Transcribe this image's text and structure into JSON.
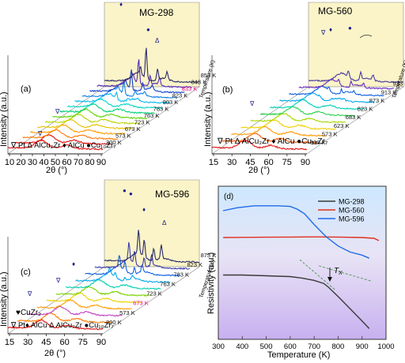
{
  "colors": {
    "temps_a": [
      "#e01010",
      "#e01010",
      "#ff7a00",
      "#ff9c00",
      "#e6c200",
      "#b7d400",
      "#5ad400",
      "#00d27a",
      "#00d6c4",
      "#00b8f0",
      "#1080e8",
      "#1040c8",
      "#5a2cb8",
      "#2a2a6a"
    ],
    "temps_b": [
      "#e01010",
      "#ff5a00",
      "#ff9a00",
      "#f0d000",
      "#a8d800",
      "#28d04a",
      "#00d0b8",
      "#00a8f0",
      "#1060e0",
      "#6a2cc0",
      "#4a3aa0"
    ],
    "temps_c": [
      "#e01010",
      "#ff7a00",
      "#c040c0",
      "#ff9a00",
      "#f0d000",
      "#7ad400",
      "#00d0b0",
      "#00a8f0",
      "#1060e0",
      "#3a3aa8",
      "#2a2a6a"
    ],
    "highlight_label": "#e0107a",
    "wall": "#fbf4c8",
    "floor_fill": "#ffffff"
  },
  "chart_data": [
    {
      "type": "line",
      "panel_label": "(a)",
      "title": "MG-298",
      "xlabel": "2θ (°)",
      "ylabel": "Intensity (a.u.)",
      "depth_label": "Temperature (K)",
      "x_ticks": [
        "10",
        "20",
        "30",
        "40",
        "50",
        "60",
        "70",
        "80",
        "90"
      ],
      "xlim": [
        10,
        90
      ],
      "temperature_labels": [
        "300 K",
        "573 K",
        "673 K",
        "723 K",
        "763 K",
        "783 K",
        "803 K",
        "823 K",
        "833 K",
        "843 K",
        "853 K"
      ],
      "highlighted_label": "833 K",
      "legend": "∇ Pt Δ AlCu₂Zr ♦ AlCu ●Cu₁₀Zr₇",
      "markers": [
        "∇",
        "∇",
        "♦",
        "●",
        "Δ"
      ]
    },
    {
      "type": "line",
      "panel_label": "(b)",
      "title": "MG-560",
      "xlabel": "2θ (°)",
      "ylabel": "Intensity (a.u.)",
      "depth_label": "Temperature (K)",
      "x_ticks": [
        "15",
        "30",
        "45",
        "60",
        "75",
        "90"
      ],
      "xlim": [
        15,
        90
      ],
      "temperature_labels": [
        "300 K",
        "573 K",
        "623 K",
        "683 K",
        "823 K",
        "873 K",
        "913 K",
        "933 K",
        "973 K"
      ],
      "highlighted_label": "973 K",
      "legend": "∇ Pt Δ AlCu₂Zr ♦ AlCu ●Cu₁₀Zr₇",
      "markers": [
        "∇",
        "∇",
        "♦",
        "●"
      ]
    },
    {
      "type": "line",
      "panel_label": "(c)",
      "title": "MG-596",
      "xlabel": "2θ (°)",
      "ylabel": "Intensity (a.u.)",
      "depth_label": "Temperature (K)",
      "x_ticks": [
        "15",
        "30",
        "45",
        "60",
        "75",
        "90"
      ],
      "xlim": [
        15,
        90
      ],
      "temperature_labels": [
        "300 K",
        "573 K",
        "673 K",
        "723 K",
        "763 K",
        "783 K",
        "823 K",
        "873 K"
      ],
      "highlighted_label": "673 K",
      "legend_line1": "♥CuZr₂",
      "legend": "∇ Pt♦ AlCu Δ AlCu₂Zr ●Cu₁₀Zr₇",
      "markers": [
        "∇",
        "∇",
        "♦",
        "●",
        "●",
        "♦",
        "Δ"
      ]
    },
    {
      "type": "line",
      "panel_label": "(d)",
      "xlabel": "Temperature (K)",
      "ylabel": "Resistivity (a.u.)",
      "xlim": [
        300,
        1000
      ],
      "x_ticks": [
        "300",
        "400",
        "500",
        "600",
        "700",
        "800",
        "900",
        "1000"
      ],
      "annotation": "T",
      "annotation_sub": "X",
      "series": [
        {
          "name": "MG-298",
          "color": "#3a3a3a",
          "x": [
            320,
            400,
            500,
            600,
            650,
            700,
            740,
            760,
            800,
            850,
            900,
            930
          ],
          "y": [
            0.42,
            0.42,
            0.415,
            0.41,
            0.4,
            0.385,
            0.365,
            0.34,
            0.28,
            0.2,
            0.12,
            0.07
          ]
        },
        {
          "name": "MG-560",
          "color": "#e03020",
          "x": [
            320,
            400,
            500,
            600,
            700,
            800,
            900,
            950,
            970
          ],
          "y": [
            0.665,
            0.666,
            0.667,
            0.668,
            0.669,
            0.668,
            0.665,
            0.66,
            0.645
          ]
        },
        {
          "name": "MG-596",
          "color": "#1e6be8",
          "x": [
            320,
            380,
            450,
            500,
            550,
            600,
            630,
            660,
            700,
            750,
            800,
            850,
            900,
            930
          ],
          "y": [
            0.84,
            0.86,
            0.872,
            0.872,
            0.872,
            0.868,
            0.85,
            0.82,
            0.75,
            0.67,
            0.61,
            0.57,
            0.55,
            0.53
          ]
        }
      ],
      "tangent_lines": [
        {
          "x": [
            720,
            940
          ],
          "y": [
            0.48,
            0.38
          ]
        },
        {
          "x": [
            640,
            790
          ],
          "y": [
            0.52,
            0.32
          ]
        }
      ],
      "ylim": [
        0,
        1
      ]
    }
  ]
}
